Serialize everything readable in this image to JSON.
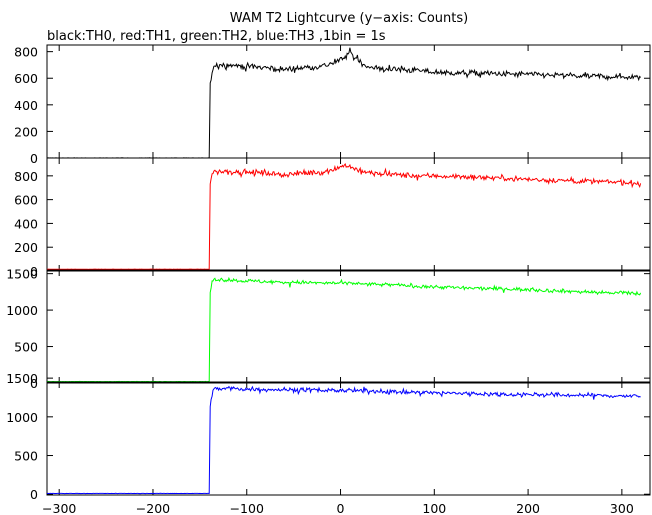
{
  "title": "WAM T2 Lightcurve (y−axis: Counts)",
  "subtitle": "black:TH0, red:TH1, green:TH2, blue:TH3 ,1bin = 1s",
  "chart_data": [
    {
      "type": "line",
      "name": "TH0",
      "color": "#000000",
      "xlim": [
        -313,
        330
      ],
      "ylim": [
        0,
        850
      ],
      "yticks": [
        0,
        200,
        400,
        600,
        800
      ],
      "series": [
        {
          "color": "#000000",
          "shape": [
            [
              -313,
              0
            ],
            [
              -140,
              0
            ],
            [
              -139,
              560
            ],
            [
              -137,
              640
            ],
            [
              -135,
              700
            ],
            [
              -120,
              700
            ],
            [
              -100,
              690
            ],
            [
              -80,
              680
            ],
            [
              -60,
              665
            ],
            [
              -40,
              680
            ],
            [
              -20,
              690
            ],
            [
              -5,
              720
            ],
            [
              5,
              760
            ],
            [
              10,
              800
            ],
            [
              15,
              760
            ],
            [
              25,
              700
            ],
            [
              40,
              670
            ],
            [
              60,
              665
            ],
            [
              80,
              660
            ],
            [
              100,
              645
            ],
            [
              120,
              640
            ],
            [
              140,
              640
            ],
            [
              160,
              635
            ],
            [
              180,
              630
            ],
            [
              200,
              630
            ],
            [
              220,
              625
            ],
            [
              240,
              620
            ],
            [
              260,
              615
            ],
            [
              280,
              615
            ],
            [
              300,
              610
            ],
            [
              320,
              610
            ]
          ],
          "noise": 22
        }
      ]
    },
    {
      "type": "line",
      "name": "TH1",
      "color": "#ff0000",
      "xlim": [
        -313,
        330
      ],
      "ylim": [
        0,
        950
      ],
      "yticks": [
        0,
        200,
        400,
        600,
        800
      ],
      "series": [
        {
          "color": "#ff0000",
          "shape": [
            [
              -313,
              15
            ],
            [
              -140,
              15
            ],
            [
              -139,
              740
            ],
            [
              -137,
              820
            ],
            [
              -135,
              840
            ],
            [
              -120,
              835
            ],
            [
              -100,
              830
            ],
            [
              -80,
              825
            ],
            [
              -60,
              810
            ],
            [
              -40,
              820
            ],
            [
              -20,
              830
            ],
            [
              -5,
              860
            ],
            [
              5,
              890
            ],
            [
              10,
              880
            ],
            [
              20,
              840
            ],
            [
              40,
              815
            ],
            [
              60,
              810
            ],
            [
              80,
              800
            ],
            [
              100,
              800
            ],
            [
              120,
              795
            ],
            [
              140,
              790
            ],
            [
              160,
              785
            ],
            [
              180,
              780
            ],
            [
              200,
              770
            ],
            [
              220,
              765
            ],
            [
              240,
              760
            ],
            [
              260,
              755
            ],
            [
              280,
              750
            ],
            [
              300,
              745
            ],
            [
              320,
              735
            ]
          ],
          "noise": 22
        }
      ]
    },
    {
      "type": "line",
      "name": "TH2",
      "color": "#00ff00",
      "xlim": [
        -313,
        330
      ],
      "ylim": [
        0,
        1550
      ],
      "yticks": [
        0,
        500,
        1000,
        1500
      ],
      "series": [
        {
          "color": "#00ff00",
          "shape": [
            [
              -313,
              20
            ],
            [
              -140,
              20
            ],
            [
              -139,
              1250
            ],
            [
              -137,
              1380
            ],
            [
              -135,
              1420
            ],
            [
              -120,
              1415
            ],
            [
              -100,
              1400
            ],
            [
              -80,
              1390
            ],
            [
              -60,
              1380
            ],
            [
              -40,
              1380
            ],
            [
              -20,
              1370
            ],
            [
              0,
              1370
            ],
            [
              20,
              1360
            ],
            [
              40,
              1350
            ],
            [
              60,
              1345
            ],
            [
              80,
              1330
            ],
            [
              100,
              1320
            ],
            [
              120,
              1310
            ],
            [
              140,
              1300
            ],
            [
              160,
              1295
            ],
            [
              180,
              1290
            ],
            [
              200,
              1280
            ],
            [
              220,
              1270
            ],
            [
              240,
              1260
            ],
            [
              260,
              1250
            ],
            [
              280,
              1240
            ],
            [
              300,
              1235
            ],
            [
              320,
              1225
            ]
          ],
          "noise": 25
        }
      ]
    },
    {
      "type": "line",
      "name": "TH3",
      "color": "#0000ff",
      "xlim": [
        -313,
        330
      ],
      "ylim": [
        -10,
        1450
      ],
      "yticks": [
        0,
        500,
        1000,
        1500
      ],
      "xticks": [
        -300,
        -200,
        -100,
        0,
        100,
        200,
        300
      ],
      "series": [
        {
          "color": "#0000ff",
          "shape": [
            [
              -313,
              10
            ],
            [
              -140,
              10
            ],
            [
              -139,
              1150
            ],
            [
              -137,
              1300
            ],
            [
              -135,
              1360
            ],
            [
              -120,
              1365
            ],
            [
              -100,
              1360
            ],
            [
              -80,
              1355
            ],
            [
              -60,
              1350
            ],
            [
              -40,
              1350
            ],
            [
              -20,
              1345
            ],
            [
              0,
              1340
            ],
            [
              20,
              1335
            ],
            [
              40,
              1330
            ],
            [
              60,
              1325
            ],
            [
              80,
              1315
            ],
            [
              100,
              1310
            ],
            [
              120,
              1305
            ],
            [
              140,
              1300
            ],
            [
              160,
              1295
            ],
            [
              180,
              1290
            ],
            [
              200,
              1290
            ],
            [
              220,
              1285
            ],
            [
              240,
              1280
            ],
            [
              260,
              1280
            ],
            [
              280,
              1275
            ],
            [
              300,
              1270
            ],
            [
              320,
              1265
            ]
          ],
          "noise": 28
        }
      ]
    }
  ]
}
